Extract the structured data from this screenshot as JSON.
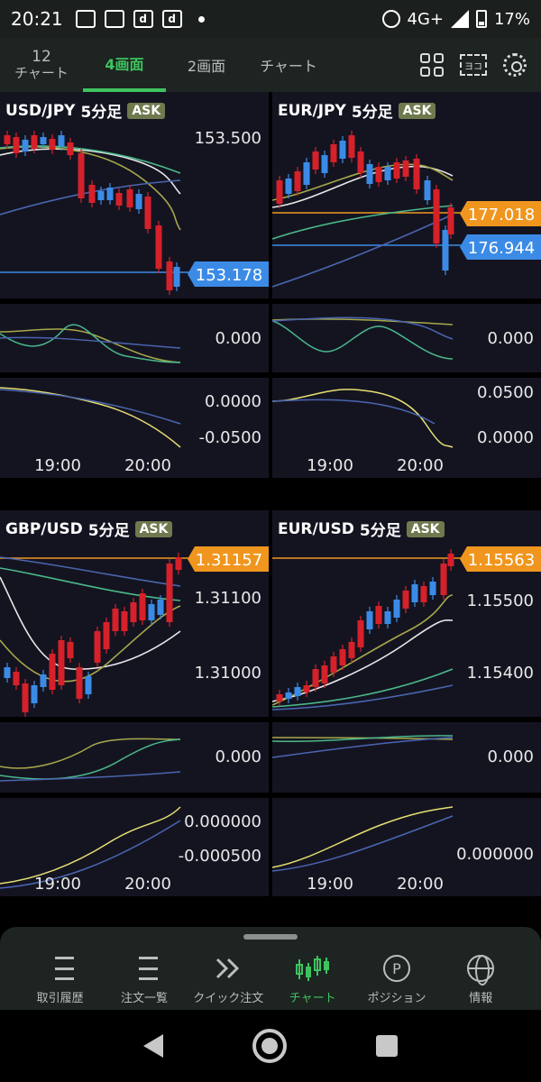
{
  "status_bar": {
    "time": "20:21",
    "network": "4G+",
    "battery": "17%"
  },
  "top_tabs": {
    "count": "12",
    "count_label": "チャート",
    "tab_4": "4画面",
    "tab_2": "2画面",
    "tab_chart": "チャート",
    "frame_icon_label": "ヨコ"
  },
  "panels": [
    {
      "pair": "USD/JPY",
      "timeframe": "5分足",
      "ask": "ASK",
      "price_levels": [
        "153.500"
      ],
      "current_price": "153.178",
      "osc1_levels": [
        "0.000"
      ],
      "osc2_levels": [
        "0.0000",
        "-0.0500"
      ],
      "time_labels": [
        "19:00",
        "20:00"
      ]
    },
    {
      "pair": "EUR/JPY",
      "timeframe": "5分足",
      "ask": "ASK",
      "price_levels": [],
      "current_price": "177.018",
      "bid_price": "176.944",
      "osc1_levels": [
        "0.000"
      ],
      "osc2_levels": [
        "0.0500",
        "0.0000"
      ],
      "time_labels": [
        "19:00",
        "20:00"
      ]
    },
    {
      "pair": "GBP/USD",
      "timeframe": "5分足",
      "ask": "ASK",
      "price_levels": [
        "1.31100",
        "1.31000"
      ],
      "current_price": "1.31157",
      "osc1_levels": [
        "0.000"
      ],
      "osc2_levels": [
        "0.000000",
        "-0.000500"
      ],
      "time_labels": [
        "19:00",
        "20:00"
      ]
    },
    {
      "pair": "EUR/USD",
      "timeframe": "5分足",
      "ask": "ASK",
      "price_levels": [
        "1.15500",
        "1.15400"
      ],
      "current_price": "1.15563",
      "osc1_levels": [
        "0.000"
      ],
      "osc2_levels": [
        "0.000000"
      ],
      "time_labels": [
        "19:00",
        "20:00"
      ]
    }
  ],
  "bottom_nav": [
    {
      "label": "取引履歴",
      "icon": "checklist-icon"
    },
    {
      "label": "注文一覧",
      "icon": "list-icon"
    },
    {
      "label": "クイック注文",
      "icon": "double-chevron-icon"
    },
    {
      "label": "チャート",
      "icon": "candlestick-icon"
    },
    {
      "label": "ポジション",
      "icon": "position-icon",
      "glyph": "P"
    },
    {
      "label": "情報",
      "icon": "globe-icon"
    }
  ],
  "colors": {
    "accent": "#3ec35f",
    "panel_bg": "#141421",
    "up": "#d6212a",
    "down": "#3b8be6",
    "ask_line": "#f0961e",
    "bid_line": "#3b8be6"
  }
}
